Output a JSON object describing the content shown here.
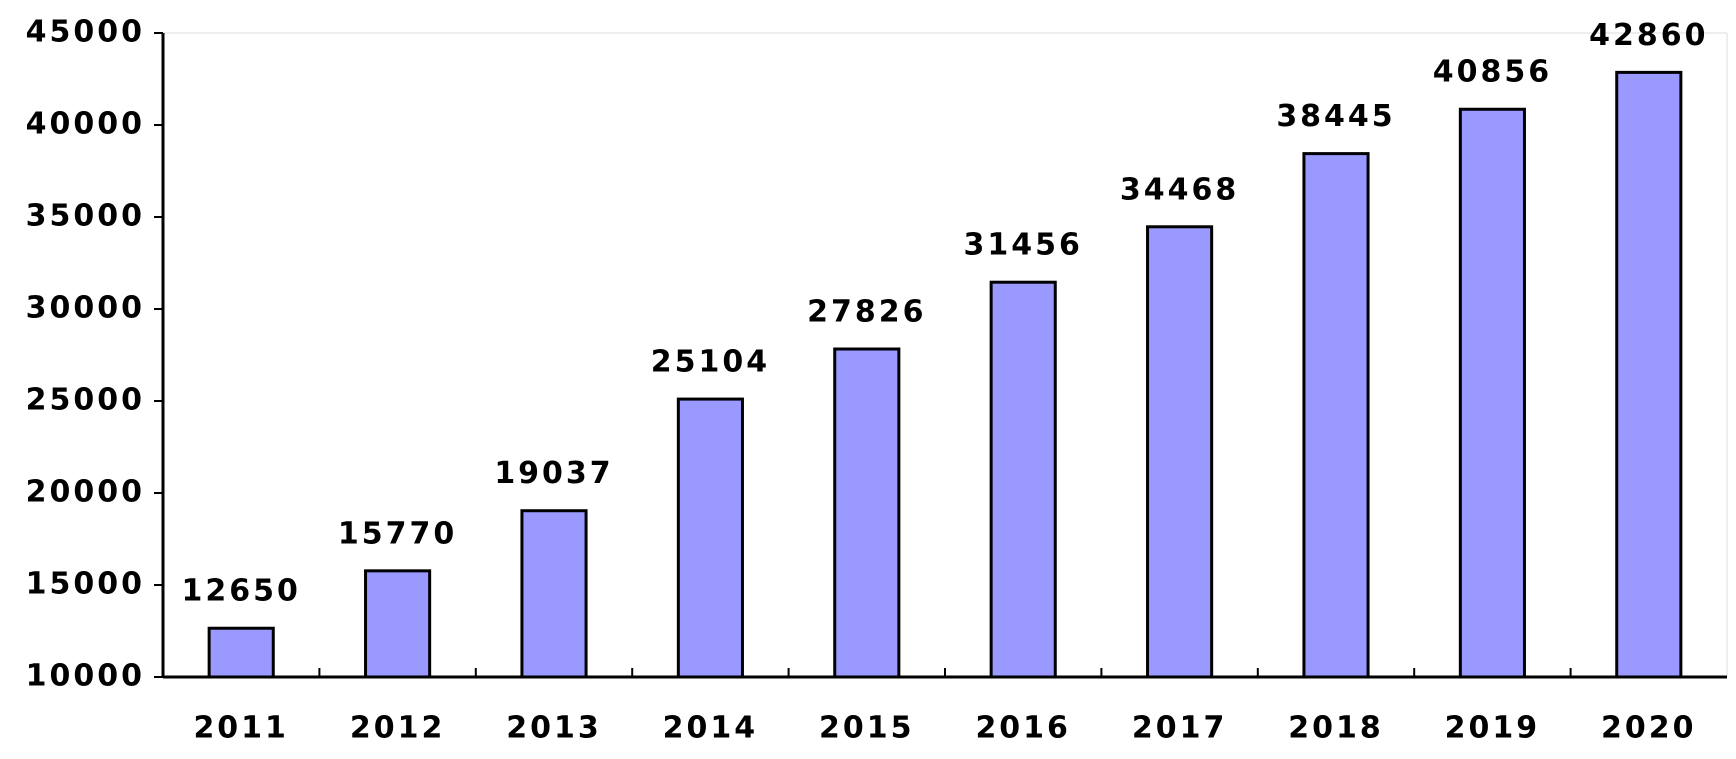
{
  "chart_data": {
    "type": "bar",
    "categories": [
      "2011",
      "2012",
      "2013",
      "2014",
      "2015",
      "2016",
      "2017",
      "2018",
      "2019",
      "2020"
    ],
    "values": [
      12650,
      15770,
      19037,
      25104,
      27826,
      31456,
      34468,
      38445,
      40856,
      42860
    ],
    "color": "#9999ff",
    "ylim": [
      10000,
      45000
    ],
    "yticks": [
      10000,
      15000,
      20000,
      25000,
      30000,
      35000,
      40000,
      45000
    ],
    "grid": false
  }
}
